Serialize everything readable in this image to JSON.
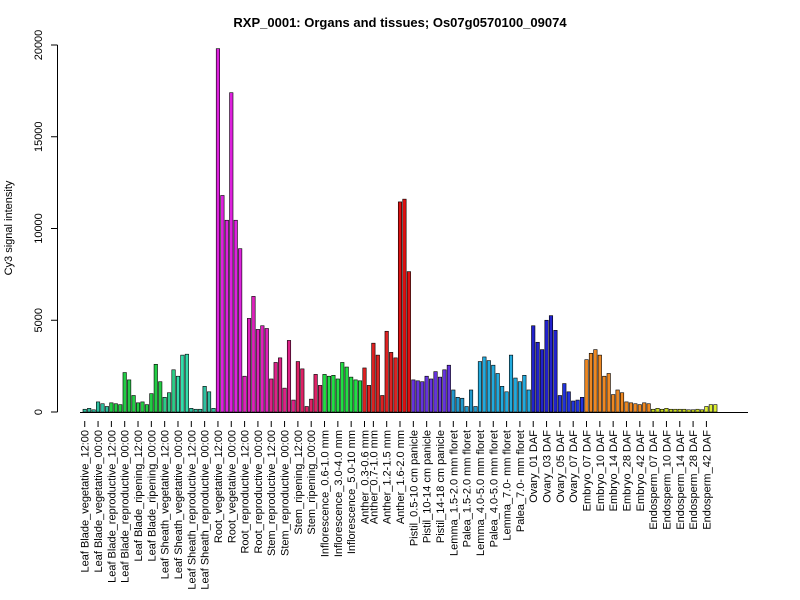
{
  "chart_data": {
    "type": "bar",
    "title": "RXP_0001: Organs and tissues; Os07g0570100_09074",
    "xlabel": "",
    "ylabel": "Cy3 signal intensity",
    "ylim": [
      0,
      20000
    ],
    "yticks": [
      0,
      5000,
      10000,
      15000,
      20000
    ],
    "grid": false,
    "legend": "none",
    "groups": [
      {
        "label": "Leaf Blade_vegetative_12:00",
        "color": "#2fbf9f",
        "values": [
          150,
          200,
          120
        ]
      },
      {
        "label": "Leaf Blade_vegetative_00:00",
        "color": "#2fbf9f",
        "values": [
          550,
          450,
          300
        ]
      },
      {
        "label": "Leaf Blade_reproductive_12:00",
        "color": "#22cc44",
        "values": [
          500,
          450,
          400
        ]
      },
      {
        "label": "Leaf Blade_reproductive_00:00",
        "color": "#22cc44",
        "values": [
          2150,
          1750,
          900
        ]
      },
      {
        "label": "Leaf Blade_ripening_12:00",
        "color": "#22cc44",
        "values": [
          500,
          550,
          400
        ]
      },
      {
        "label": "Leaf Blade_ripening_00:00",
        "color": "#22cc44",
        "values": [
          1000,
          2600,
          1650
        ]
      },
      {
        "label": "Leaf Sheath_vegetative_12:00",
        "color": "#2ecc88",
        "values": [
          800,
          1050,
          2300
        ]
      },
      {
        "label": "Leaf Sheath_vegetative_00:00",
        "color": "#33ddaa",
        "values": [
          1950,
          3100,
          3150
        ]
      },
      {
        "label": "Leaf Sheath_reproductive_12:00",
        "color": "#2fbf9f",
        "values": [
          200,
          150,
          150
        ]
      },
      {
        "label": "Leaf Sheath_reproductive_00:00",
        "color": "#2fbf9f",
        "values": [
          1400,
          1100,
          200
        ]
      },
      {
        "label": "Root_vegetative_12:00",
        "color": "#dd22dd",
        "values": [
          19800,
          11800,
          10450
        ]
      },
      {
        "label": "Root_vegetative_00:00",
        "color": "#dd22dd",
        "values": [
          17400,
          10450,
          8900
        ]
      },
      {
        "label": "Root_reproductive_12:00",
        "color": "#dd22bb",
        "values": [
          1950,
          5100,
          6300
        ]
      },
      {
        "label": "Root_reproductive_00:00",
        "color": "#dd22bb",
        "values": [
          4500,
          4700,
          4550
        ]
      },
      {
        "label": "Stem_reproductive_12:00",
        "color": "#dd2288",
        "values": [
          1800,
          2700,
          2950
        ]
      },
      {
        "label": "Stem_reproductive_00:00",
        "color": "#dd2288",
        "values": [
          1300,
          3900,
          650
        ]
      },
      {
        "label": "Stem_ripening_12:00",
        "color": "#dd2266",
        "values": [
          2750,
          2350,
          300
        ]
      },
      {
        "label": "Stem_ripening_00:00",
        "color": "#dd2266",
        "values": [
          700,
          2050,
          1450
        ]
      },
      {
        "label": "Inflorescence_0.6-1.0 mm",
        "color": "#22dd44",
        "values": [
          2050,
          1950,
          2000
        ]
      },
      {
        "label": "Inflorescence_3.0-4.0 mm",
        "color": "#22dd44",
        "values": [
          1800,
          2700,
          2450
        ]
      },
      {
        "label": "Inflorescence_5.0-10 mm",
        "color": "#22dd44",
        "values": [
          1900,
          1750,
          1700
        ]
      },
      {
        "label": "Anther_0.3-0.6 mm",
        "color": "#dd2222",
        "values": [
          2400,
          1450
        ]
      },
      {
        "label": "Anther_0.7-1.0 mm",
        "color": "#dd2222",
        "values": [
          3750,
          3100,
          900
        ]
      },
      {
        "label": "Anther_1.2-1.5 mm",
        "color": "#dd2222",
        "values": [
          4400,
          3250,
          2950
        ]
      },
      {
        "label": "Anther_1.6-2.0 mm",
        "color": "#dd1111",
        "values": [
          11450,
          11600,
          7650
        ]
      },
      {
        "label": "Pistil_0.5-10 cm panicle",
        "color": "#6633dd",
        "values": [
          1750,
          1700,
          1650
        ]
      },
      {
        "label": "Pistil_10-14 cm panicle",
        "color": "#6633dd",
        "values": [
          1950,
          1800,
          2200
        ]
      },
      {
        "label": "Pistil_14-18 cm panicle",
        "color": "#6633dd",
        "values": [
          1900,
          2300,
          2550
        ]
      },
      {
        "label": "Lemma_1.5-2.0 mm floret",
        "color": "#2299cc",
        "values": [
          1200,
          800,
          750
        ]
      },
      {
        "label": "Palea_1.5-2.0 mm floret",
        "color": "#2299cc",
        "values": [
          300,
          1200,
          300
        ]
      },
      {
        "label": "Lemma_4.0-5.0 mm floret",
        "color": "#22aadd",
        "values": [
          2750,
          3000,
          2800
        ]
      },
      {
        "label": "Palea_4.0-5.0 mm floret",
        "color": "#22aadd",
        "values": [
          2550,
          2100,
          1400
        ]
      },
      {
        "label": "Lemma_7.0- mm floret",
        "color": "#22aadd",
        "values": [
          1100,
          3100,
          1850
        ]
      },
      {
        "label": "Palea_7.0- mm floret",
        "color": "#22aadd",
        "values": [
          1650,
          2000,
          1200
        ]
      },
      {
        "label": "Ovary_01 DAF",
        "color": "#2222cc",
        "values": [
          4700,
          3800,
          3400
        ]
      },
      {
        "label": "Ovary_03 DAF",
        "color": "#2222cc",
        "values": [
          5000,
          5250,
          4450
        ]
      },
      {
        "label": "Ovary_05 DAF",
        "color": "#2233dd",
        "values": [
          900,
          1550,
          1100
        ]
      },
      {
        "label": "Ovary_07 DAF",
        "color": "#2233dd",
        "values": [
          600,
          650,
          800
        ]
      },
      {
        "label": "Embryo_07 DAF",
        "color": "#ee8822",
        "values": [
          2850,
          3200,
          3400
        ]
      },
      {
        "label": "Embryo_10 DAF",
        "color": "#ee8822",
        "values": [
          3100,
          1950,
          2100
        ]
      },
      {
        "label": "Embryo_14 DAF",
        "color": "#ee8822",
        "values": [
          950,
          1200,
          1050
        ]
      },
      {
        "label": "Embryo_28 DAF",
        "color": "#ee8822",
        "values": [
          550,
          500,
          450
        ]
      },
      {
        "label": "Embryo_42 DAF",
        "color": "#ee8822",
        "values": [
          400,
          500,
          450
        ]
      },
      {
        "label": "Endosperm_07 DAF",
        "color": "#ccdd22",
        "values": [
          150,
          200,
          150
        ]
      },
      {
        "label": "Endosperm_10 DAF",
        "color": "#ccdd22",
        "values": [
          200,
          150,
          150
        ]
      },
      {
        "label": "Endosperm_14 DAF",
        "color": "#ccdd22",
        "values": [
          150,
          150,
          120
        ]
      },
      {
        "label": "Endosperm_28 DAF",
        "color": "#ccdd22",
        "values": [
          120,
          150,
          120
        ]
      },
      {
        "label": "Endosperm_42 DAF",
        "color": "#ddee33",
        "values": [
          300,
          400,
          400
        ]
      }
    ]
  }
}
